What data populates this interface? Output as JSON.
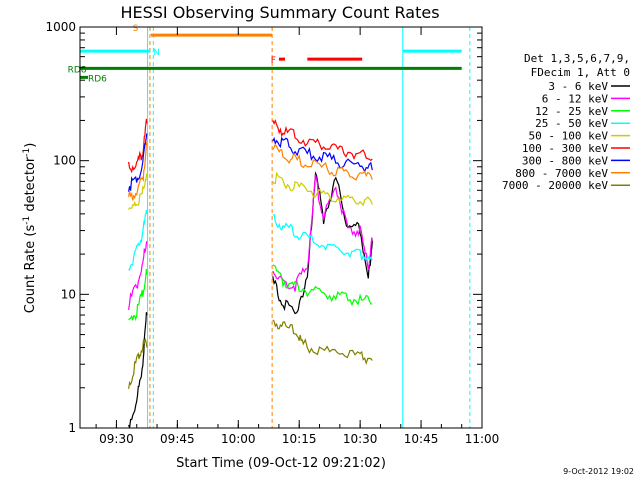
{
  "chart_data": {
    "type": "line",
    "title": "HESSI Observing Summary Count Rates",
    "xlabel": "Start Time (09-Oct-12 09:21:02)",
    "ylabel_main": "Count Rate (s",
    "ylabel_sup": "-1",
    "ylabel_mid": " detector",
    "ylabel_sup2": "-1",
    "ylabel_end": ")",
    "y_scale": "log",
    "ylim": [
      1,
      1000
    ],
    "xlim": [
      "09:21:02",
      "11:00:00"
    ],
    "x_ticks": [
      "09:30",
      "09:45",
      "10:00",
      "10:15",
      "10:30",
      "10:45",
      "11:00"
    ],
    "y_ticks": [
      "1",
      "10",
      "100",
      "1000"
    ],
    "footer_date": "9-Oct-2012 19:02",
    "legend_header": [
      "Det 1,3,5,6,7,9,",
      "FDecim 1, Att 0"
    ],
    "series": [
      {
        "name": "3 - 6 keV",
        "color": "#000000",
        "segments": [
          [
            [
              "09:33:00",
              1.0
            ],
            [
              "09:35:00",
              1.5
            ],
            [
              "09:36:30",
              3
            ],
            [
              "09:37:30",
              7
            ]
          ],
          [
            [
              "10:08:30",
              12
            ],
            [
              "10:11:00",
              8
            ],
            [
              "10:14:00",
              7
            ],
            [
              "10:17:00",
              12
            ],
            [
              "10:19:00",
              80
            ],
            [
              "10:21:00",
              35
            ],
            [
              "10:24:00",
              70
            ],
            [
              "10:27:00",
              30
            ],
            [
              "10:30:00",
              30
            ],
            [
              "10:32:00",
              12
            ],
            [
              "10:33:00",
              25
            ]
          ]
        ]
      },
      {
        "name": "6 - 12 keV",
        "color": "#ff00ff",
        "segments": [
          [
            [
              "09:33:00",
              8
            ],
            [
              "09:35:00",
              11
            ],
            [
              "09:36:30",
              16
            ],
            [
              "09:37:30",
              25
            ]
          ],
          [
            [
              "10:08:30",
              15
            ],
            [
              "10:11:00",
              12
            ],
            [
              "10:14:00",
              11
            ],
            [
              "10:17:00",
              15
            ],
            [
              "10:19:00",
              70
            ],
            [
              "10:21:00",
              35
            ],
            [
              "10:24:00",
              60
            ],
            [
              "10:27:00",
              30
            ],
            [
              "10:30:00",
              28
            ],
            [
              "10:32:00",
              15
            ],
            [
              "10:33:00",
              25
            ]
          ]
        ]
      },
      {
        "name": "12 - 25 keV",
        "color": "#00ff00",
        "segments": [
          [
            [
              "09:33:00",
              6
            ],
            [
              "09:35:00",
              7
            ],
            [
              "09:36:30",
              10
            ],
            [
              "09:37:30",
              14
            ]
          ],
          [
            [
              "10:08:30",
              15
            ],
            [
              "10:11:00",
              12
            ],
            [
              "10:14:00",
              11
            ],
            [
              "10:18:00",
              10
            ],
            [
              "10:22:00",
              9.5
            ],
            [
              "10:26:00",
              9
            ],
            [
              "10:30:00",
              8.5
            ],
            [
              "10:33:00",
              8.5
            ]
          ]
        ]
      },
      {
        "name": "25 - 50 keV",
        "color": "#00ffff",
        "segments": [
          [
            [
              "09:33:00",
              15
            ],
            [
              "09:35:00",
              20
            ],
            [
              "09:36:30",
              28
            ],
            [
              "09:37:30",
              40
            ]
          ],
          [
            [
              "10:08:30",
              35
            ],
            [
              "10:11:00",
              30
            ],
            [
              "10:14:00",
              28
            ],
            [
              "10:18:00",
              24
            ],
            [
              "10:22:00",
              22
            ],
            [
              "10:26:00",
              20
            ],
            [
              "10:30:00",
              19
            ],
            [
              "10:33:00",
              18
            ]
          ]
        ]
      },
      {
        "name": "50 - 100 keV",
        "color": "#cccc00",
        "segments": [
          [
            [
              "09:33:00",
              40
            ],
            [
              "09:35:00",
              45
            ],
            [
              "09:36:30",
              55
            ],
            [
              "09:37:30",
              80
            ]
          ],
          [
            [
              "10:08:30",
              72
            ],
            [
              "10:11:00",
              65
            ],
            [
              "10:14:00",
              60
            ],
            [
              "10:18:00",
              56
            ],
            [
              "10:22:00",
              53
            ],
            [
              "10:26:00",
              50
            ],
            [
              "10:30:00",
              48
            ],
            [
              "10:33:00",
              47
            ]
          ]
        ]
      },
      {
        "name": "100 - 300 keV",
        "color": "#ff0000",
        "segments": [
          [
            [
              "09:33:00",
              85
            ],
            [
              "09:35:00",
              90
            ],
            [
              "09:36:30",
              110
            ],
            [
              "09:37:30",
              190
            ]
          ],
          [
            [
              "10:08:30",
              175
            ],
            [
              "10:11:00",
              160
            ],
            [
              "10:14:00",
              145
            ],
            [
              "10:18:00",
              130
            ],
            [
              "10:22:00",
              120
            ],
            [
              "10:26:00",
              112
            ],
            [
              "10:30:00",
              106
            ],
            [
              "10:33:00",
              103
            ]
          ]
        ]
      },
      {
        "name": "300 - 800 keV",
        "color": "#0000ff",
        "segments": [
          [
            [
              "09:33:00",
              60
            ],
            [
              "09:35:00",
              70
            ],
            [
              "09:36:30",
              90
            ],
            [
              "09:37:30",
              160
            ]
          ],
          [
            [
              "10:08:30",
              145
            ],
            [
              "10:11:00",
              130
            ],
            [
              "10:14:00",
              115
            ],
            [
              "10:18:00",
              105
            ],
            [
              "10:22:00",
              98
            ],
            [
              "10:26:00",
              92
            ],
            [
              "10:30:00",
              88
            ],
            [
              "10:33:00",
              85
            ]
          ]
        ]
      },
      {
        "name": "800 - 7000 keV",
        "color": "#ff8000",
        "segments": [
          [
            [
              "09:33:00",
              50
            ],
            [
              "09:35:00",
              55
            ],
            [
              "09:36:30",
              70
            ],
            [
              "09:37:30",
              130
            ]
          ],
          [
            [
              "10:08:30",
              120
            ],
            [
              "10:11:00",
              105
            ],
            [
              "10:14:00",
              95
            ],
            [
              "10:18:00",
              88
            ],
            [
              "10:22:00",
              82
            ],
            [
              "10:26:00",
              78
            ],
            [
              "10:30:00",
              74
            ],
            [
              "10:33:00",
              72
            ]
          ]
        ]
      },
      {
        "name": "7000 - 20000 keV",
        "color": "#808000",
        "segments": [
          [
            [
              "09:33:00",
              2
            ],
            [
              "09:35:00",
              3
            ],
            [
              "09:36:30",
              4
            ],
            [
              "09:37:30",
              4
            ]
          ],
          [
            [
              "10:08:30",
              6
            ],
            [
              "10:11:00",
              5.5
            ],
            [
              "10:14:00",
              5
            ],
            [
              "10:16:00",
              4
            ],
            [
              "10:20:00",
              3.5
            ],
            [
              "10:25:00",
              3.5
            ],
            [
              "10:30:00",
              3.2
            ],
            [
              "10:33:00",
              3.2
            ]
          ]
        ]
      }
    ],
    "flags": [
      {
        "name": "S",
        "color": "#ff8000",
        "label_at": "09:34:00",
        "y": 870,
        "start": "09:38:30",
        "end": "10:08:20"
      },
      {
        "name": "N",
        "color": "#00ffff",
        "label_at": "09:39:00",
        "y": 660,
        "segments": [
          [
            "09:21:02",
            "09:38:20"
          ],
          [
            "10:40:30",
            "10:55:00"
          ]
        ]
      },
      {
        "name": "F",
        "color": "#ff0000",
        "label_at": "10:08:00",
        "y": 575,
        "segments": [
          [
            "10:10:00",
            "10:11:30"
          ],
          [
            "10:17:00",
            "10:30:30"
          ]
        ]
      },
      {
        "name": "RD8",
        "color": "#008000",
        "label_at": "09:18:00",
        "y": 490,
        "start": "09:21:02",
        "end": "10:55:00"
      },
      {
        "name": "RD6",
        "color": "#008000",
        "label_at": "09:23:00",
        "y": 420,
        "start": "09:21:02",
        "end": "09:23:00"
      }
    ],
    "vlines": [
      {
        "time": "09:21:02",
        "color": "#00ffff",
        "style": "solid"
      },
      {
        "time": "09:37:40",
        "color": "#00ffff",
        "style": "solid"
      },
      {
        "time": "09:38:15",
        "color": "#ff8000",
        "style": "dashed"
      },
      {
        "time": "09:39:05",
        "color": "#00ffff",
        "style": "dashed"
      },
      {
        "time": "10:08:20",
        "color": "#ff8000",
        "style": "dashed"
      },
      {
        "time": "10:40:30",
        "color": "#00ffff",
        "style": "solid"
      },
      {
        "time": "10:57:00",
        "color": "#00ffff",
        "style": "dashed"
      }
    ]
  }
}
